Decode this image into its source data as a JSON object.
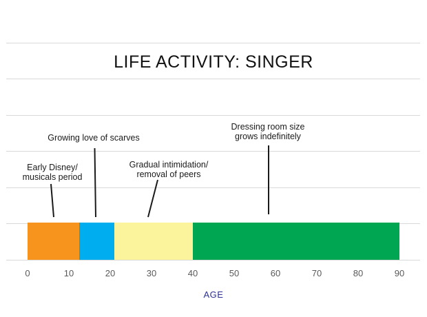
{
  "chart_data": {
    "type": "bar",
    "variant": "horizontal-stacked-timeline",
    "title": "LIFE ACTIVITY: SINGER",
    "xlabel": "AGE",
    "xlim": [
      0,
      90
    ],
    "x_ticks": [
      "0",
      "10",
      "20",
      "30",
      "40",
      "50",
      "60",
      "70",
      "80",
      "90"
    ],
    "grid": "horizontal",
    "colors": {
      "gridline": "#d9d9d9",
      "tick_text": "#595959",
      "xlabel_text": "#2e3192",
      "annotation_text": "#1a1a1a",
      "leader_line": "#1a1a1a",
      "background": "#ffffff"
    },
    "segments": [
      {
        "label": "Early Disney/ musicals period",
        "start": 0,
        "end": 12.5,
        "color": "#F7941E"
      },
      {
        "label": "Growing love of scarves",
        "start": 12.5,
        "end": 21,
        "color": "#00AEEF"
      },
      {
        "label": "Gradual intimidation/ removal of peers",
        "start": 21,
        "end": 40,
        "color": "#FBF49C"
      },
      {
        "label": "Dressing room size grows indefinitely",
        "start": 40,
        "end": 90,
        "color": "#00A651"
      }
    ],
    "annotations": [
      {
        "lines": [
          "Early Disney/",
          "musicals period"
        ],
        "points_to_age": 6
      },
      {
        "lines": [
          "Growing love of scarves"
        ],
        "points_to_age": 16.5
      },
      {
        "lines": [
          "Gradual intimidation/",
          "removal of peers"
        ],
        "points_to_age": 29
      },
      {
        "lines": [
          "Dressing room size",
          "grows indefinitely"
        ],
        "points_to_age": 58
      }
    ]
  }
}
